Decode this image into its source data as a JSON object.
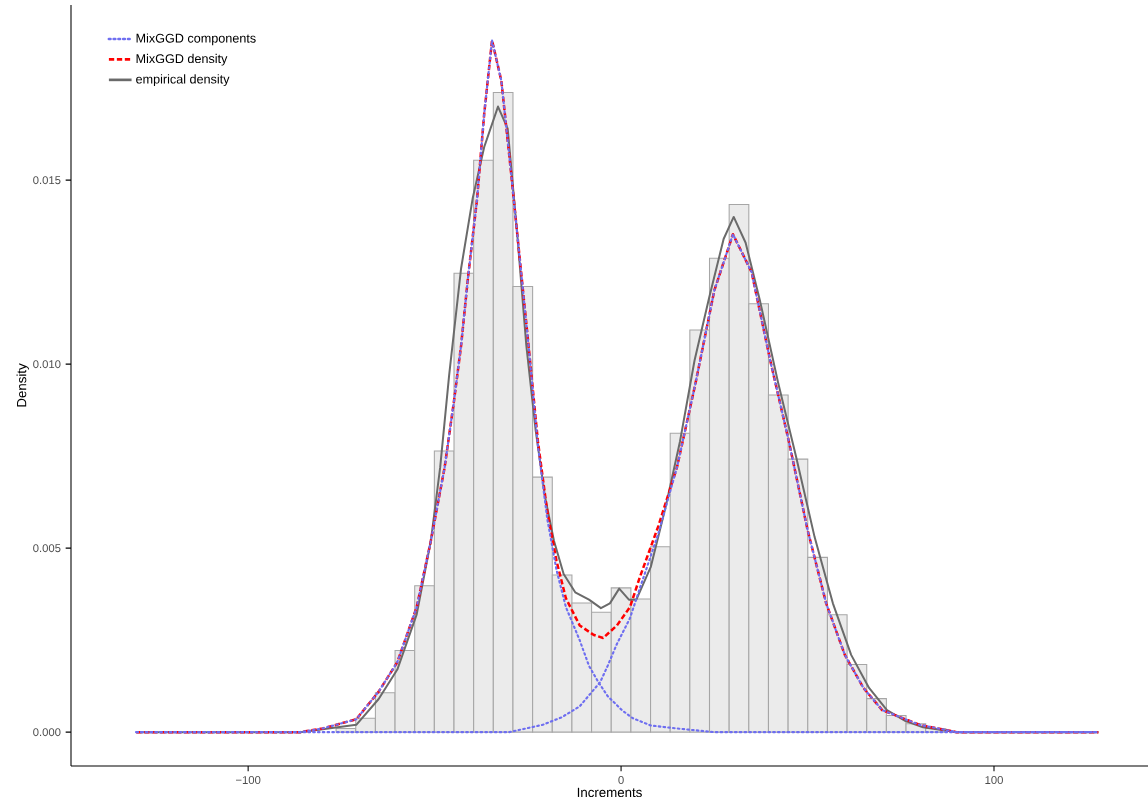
{
  "chart_data": {
    "type": "histogram",
    "xlabel": "Increments",
    "ylabel": "Density",
    "bins": [
      -134.385,
      -129.115,
      -123.845,
      -118.575,
      -113.305,
      -108.035,
      -102.765,
      -97.495,
      -92.225,
      -86.955,
      -81.685,
      -76.415,
      -71.145,
      -65.875,
      -60.605,
      -55.335,
      -50.065,
      -44.795,
      -39.525,
      -34.255,
      -28.985,
      -23.715,
      -18.445,
      -13.175,
      -7.905,
      -2.635,
      2.635,
      7.905,
      13.175,
      18.445,
      23.715,
      28.985,
      34.255,
      39.525,
      44.795,
      50.065,
      55.335,
      60.605,
      65.875,
      71.145,
      76.415,
      81.685,
      86.955,
      92.225,
      97.495,
      102.765,
      108.035,
      113.305,
      118.575,
      123.845,
      129.115
    ],
    "values": [
      0,
      0,
      0,
      0,
      0,
      0,
      0,
      0,
      0,
      0,
      0,
      0.0001,
      0.00038,
      0.00107,
      0.00222,
      0.00398,
      0.00764,
      0.01247,
      0.01554,
      0.01738,
      0.01211,
      0.00693,
      0.00427,
      0.00351,
      0.00326,
      0.00392,
      0.00362,
      0.00504,
      0.00812,
      0.01093,
      0.01288,
      0.01434,
      0.01164,
      0.00916,
      0.00742,
      0.00475,
      0.00319,
      0.00184,
      0.00091,
      0.00045,
      0.00023,
      0.0001,
      0,
      0,
      0,
      0,
      0,
      0,
      0,
      0
    ],
    "color": "#ebebeb",
    "series": [
      {
        "type": "line",
        "name": "MixGGD components",
        "color": "#6e6ef0",
        "line_style": "dotted",
        "x": [
          -130,
          -100,
          -86,
          -80,
          -71,
          -65,
          -60,
          -54.8,
          -51,
          -47.3,
          -44.8,
          -42.9,
          -41.1,
          -38.6,
          -36.7,
          -34.6,
          -32.1,
          -29.8,
          -27.3,
          -24.8,
          -22.3,
          -19.8,
          -17.3,
          -14.8,
          -11.1,
          -8.6,
          -6.1,
          -3.6,
          0.2,
          3.1,
          8,
          15,
          25,
          50,
          128
        ],
        "values": [
          0,
          0,
          0,
          0.0001,
          0.00035,
          0.0011,
          0.0019,
          0.0034,
          0.0052,
          0.0072,
          0.009,
          0.0105,
          0.0123,
          0.0145,
          0.0168,
          0.0188,
          0.0177,
          0.0155,
          0.013,
          0.0105,
          0.0078,
          0.0058,
          0.0044,
          0.0034,
          0.0025,
          0.0018,
          0.00136,
          0.00098,
          0.0006,
          0.00038,
          0.00018,
          0.0001,
          0,
          0,
          0
        ]
      },
      {
        "type": "line",
        "color": "#6e6ef0",
        "line_style": "dotted",
        "x": [
          -130,
          -30,
          -21,
          -16,
          -11.1,
          -8.6,
          -5.6,
          -3.6,
          -1.1,
          2.4,
          5,
          10,
          15,
          20,
          25,
          30,
          35,
          40,
          45,
          50,
          55,
          60,
          65,
          70,
          75,
          80,
          90,
          100,
          128
        ],
        "values": [
          0,
          0,
          0.0002,
          0.0004,
          0.0007,
          0.001,
          0.00136,
          0.0018,
          0.0024,
          0.0031,
          0.0039,
          0.0054,
          0.0072,
          0.0095,
          0.012,
          0.01353,
          0.0125,
          0.0101,
          0.0079,
          0.0055,
          0.0035,
          0.0021,
          0.0012,
          0.0006,
          0.0004,
          0.0002,
          0,
          0,
          0
        ]
      },
      {
        "type": "line",
        "name": "MixGGD density",
        "color": "#ff0000",
        "line_style": "dashed",
        "x": [
          -130,
          -100,
          -86,
          -80,
          -71,
          -65,
          -60,
          -54.8,
          -51,
          -47.3,
          -44.8,
          -42.9,
          -41.1,
          -38.6,
          -36.7,
          -34.6,
          -32.1,
          -29.8,
          -27.3,
          -24.8,
          -22.3,
          -19.8,
          -17.3,
          -14.8,
          -11.1,
          -7.3,
          -4.8,
          -1.1,
          2.4,
          5,
          10,
          15,
          20,
          25,
          30,
          35,
          40,
          45,
          50,
          55,
          60,
          65,
          70,
          75,
          80,
          90,
          100,
          128
        ],
        "values": [
          0,
          0,
          0,
          0.0001,
          0.00035,
          0.0011,
          0.0019,
          0.0034,
          0.0052,
          0.0072,
          0.009,
          0.0105,
          0.0123,
          0.0145,
          0.0168,
          0.0188,
          0.0177,
          0.0155,
          0.013,
          0.0105,
          0.0079,
          0.006,
          0.00465,
          0.00364,
          0.0029,
          0.00264,
          0.00256,
          0.0029,
          0.0034,
          0.0042,
          0.0056,
          0.0072,
          0.0095,
          0.012,
          0.01353,
          0.0125,
          0.0101,
          0.0079,
          0.0055,
          0.0035,
          0.0021,
          0.0012,
          0.0006,
          0.0004,
          0.0002,
          0,
          0,
          0
        ]
      },
      {
        "type": "line",
        "name": "empirical density",
        "color": "#6a6a6a",
        "line_style": "solid",
        "x": [
          -130,
          -100,
          -86,
          -71,
          -65,
          -60,
          -54.8,
          -51,
          -48.5,
          -46.1,
          -42.9,
          -39.8,
          -36.7,
          -33,
          -30.4,
          -27.9,
          -25.4,
          -22.9,
          -20.4,
          -18,
          -15.4,
          -12.3,
          -8.6,
          -5.4,
          -3,
          -0.5,
          2.1,
          4.1,
          8,
          11.9,
          15.8,
          19.7,
          23.6,
          27.5,
          30.2,
          33.4,
          37.3,
          42.1,
          46.9,
          51.9,
          56.8,
          61.7,
          66.5,
          71.3,
          76.3,
          81,
          90,
          100,
          128
        ],
        "values": [
          0,
          0,
          0,
          0.0002,
          0.0009,
          0.0017,
          0.0032,
          0.0052,
          0.0072,
          0.0097,
          0.0126,
          0.0145,
          0.0159,
          0.017,
          0.0164,
          0.0136,
          0.0105,
          0.0082,
          0.0064,
          0.0052,
          0.0043,
          0.0038,
          0.0036,
          0.00337,
          0.0035,
          0.0039,
          0.0036,
          0.0036,
          0.0045,
          0.0061,
          0.0079,
          0.0101,
          0.0118,
          0.0134,
          0.014,
          0.0133,
          0.0117,
          0.0095,
          0.0075,
          0.0053,
          0.0035,
          0.0021,
          0.0012,
          0.0006,
          0.0003,
          0.00013,
          0,
          0,
          0
        ]
      }
    ],
    "xlim": [
      -147.5,
      141.3
    ],
    "ylim": [
      -0.00092,
      0.01976
    ],
    "xticks": [
      {
        "value": -100,
        "label": "−100"
      },
      {
        "value": 0,
        "label": "0"
      },
      {
        "value": 100,
        "label": "100"
      }
    ],
    "yticks": [
      {
        "value": 0,
        "label": "0.000"
      },
      {
        "value": 0.005,
        "label": "0.005"
      },
      {
        "value": 0.01,
        "label": "0.010"
      },
      {
        "value": 0.015,
        "label": "0.015"
      }
    ],
    "grid": false,
    "legend": "top left"
  }
}
